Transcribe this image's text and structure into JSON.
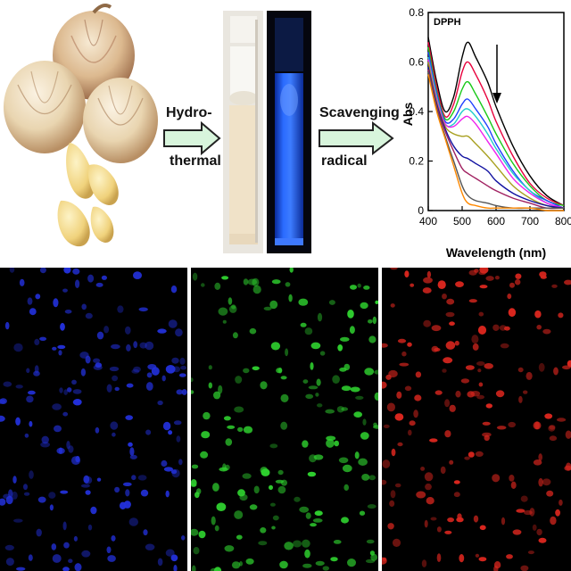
{
  "step1": {
    "line1": "Hydro-",
    "line2": "thermal"
  },
  "step2": {
    "line1": "Scavenging",
    "line2": "radical"
  },
  "colors": {
    "arrow_fill": "#d8f5dc",
    "vial_glow": "#2a6bff",
    "micro_blue": "#2230d8",
    "micro_green": "#2fd12f",
    "micro_red": "#d8261e"
  },
  "chart_data": {
    "type": "line",
    "title": "DPPH",
    "xlabel": "Wavelength (nm)",
    "ylabel": "Abs",
    "xlim": [
      400,
      800
    ],
    "ylim": [
      0,
      0.8
    ],
    "xticks": [
      "400",
      "500",
      "600",
      "700",
      "800"
    ],
    "yticks": [
      "0",
      "0.2",
      "0.4",
      "0.6",
      "0.8"
    ],
    "x": [
      400,
      425,
      450,
      475,
      500,
      517,
      540,
      575,
      600,
      650,
      700,
      750,
      800
    ],
    "series": [
      {
        "color": "#000000",
        "values": [
          0.7,
          0.52,
          0.4,
          0.46,
          0.62,
          0.68,
          0.62,
          0.52,
          0.42,
          0.26,
          0.14,
          0.06,
          0.02
        ]
      },
      {
        "color": "#e8003c",
        "values": [
          0.68,
          0.5,
          0.38,
          0.43,
          0.56,
          0.6,
          0.55,
          0.45,
          0.36,
          0.22,
          0.11,
          0.05,
          0.02
        ]
      },
      {
        "color": "#19c919",
        "values": [
          0.66,
          0.48,
          0.37,
          0.4,
          0.49,
          0.52,
          0.47,
          0.38,
          0.31,
          0.19,
          0.1,
          0.04,
          0.02
        ]
      },
      {
        "color": "#2040ff",
        "values": [
          0.64,
          0.47,
          0.36,
          0.37,
          0.43,
          0.45,
          0.41,
          0.34,
          0.27,
          0.16,
          0.08,
          0.04,
          0.01
        ]
      },
      {
        "color": "#22cccc",
        "values": [
          0.62,
          0.46,
          0.35,
          0.35,
          0.4,
          0.41,
          0.38,
          0.31,
          0.25,
          0.15,
          0.08,
          0.03,
          0.01
        ]
      },
      {
        "color": "#ee22ee",
        "values": [
          0.61,
          0.45,
          0.35,
          0.34,
          0.37,
          0.38,
          0.35,
          0.28,
          0.23,
          0.13,
          0.07,
          0.03,
          0.01
        ]
      },
      {
        "color": "#a8a020",
        "values": [
          0.6,
          0.44,
          0.34,
          0.31,
          0.3,
          0.3,
          0.27,
          0.22,
          0.18,
          0.1,
          0.05,
          0.02,
          0.01
        ]
      },
      {
        "color": "#1010a0",
        "values": [
          0.58,
          0.43,
          0.33,
          0.26,
          0.22,
          0.21,
          0.19,
          0.16,
          0.12,
          0.07,
          0.04,
          0.02,
          0.01
        ]
      },
      {
        "color": "#a02060",
        "values": [
          0.57,
          0.42,
          0.32,
          0.24,
          0.17,
          0.15,
          0.13,
          0.1,
          0.08,
          0.05,
          0.03,
          0.01,
          0.01
        ]
      },
      {
        "color": "#555555",
        "values": [
          0.56,
          0.41,
          0.3,
          0.2,
          0.1,
          0.06,
          0.04,
          0.03,
          0.02,
          0.01,
          0.01,
          0.01,
          0.01
        ]
      },
      {
        "color": "#ff8800",
        "values": [
          0.55,
          0.4,
          0.29,
          0.18,
          0.07,
          0.03,
          0.02,
          0.01,
          0.01,
          0.01,
          0.01,
          0.0,
          0.0
        ]
      }
    ]
  }
}
